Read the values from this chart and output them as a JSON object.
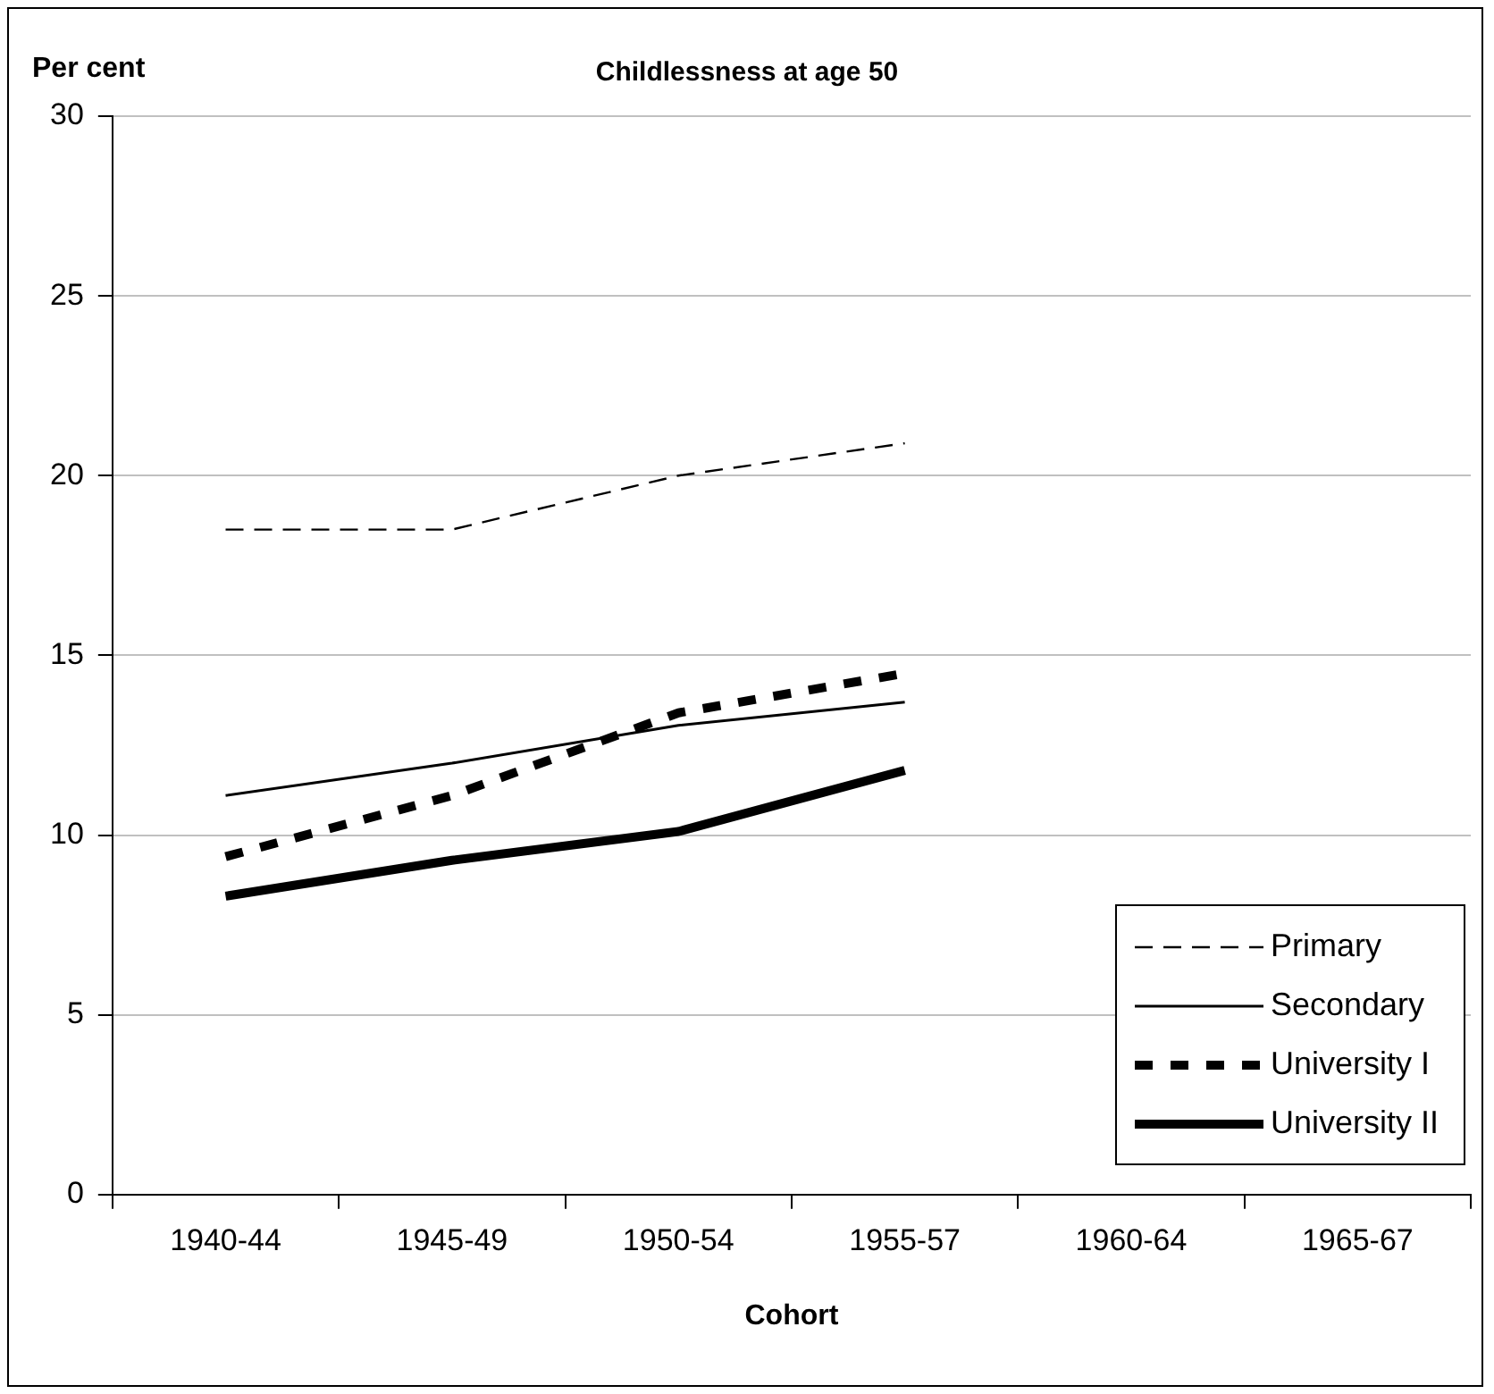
{
  "chart_data": {
    "type": "line",
    "title": "Childlessness at age 50",
    "xlabel": "Cohort",
    "ylabel": "Per cent",
    "categories": [
      "1940-44",
      "1945-49",
      "1950-54",
      "1955-57",
      "1960-64",
      "1965-67"
    ],
    "series": [
      {
        "name": "Primary",
        "color": "#000000",
        "line_style": "dashed",
        "values": [
          18.5,
          18.5,
          20.0,
          20.9,
          null,
          null
        ]
      },
      {
        "name": "Secondary",
        "color": "#000000",
        "line_style": "solid",
        "values": [
          11.1,
          12.0,
          13.05,
          13.7,
          null,
          null
        ]
      },
      {
        "name": "University I",
        "color": "#000000",
        "line_style": "dotted",
        "values": [
          9.4,
          11.1,
          13.4,
          14.5,
          null,
          null
        ]
      },
      {
        "name": "University II",
        "color": "#000000",
        "line_style": "solid",
        "values": [
          8.3,
          9.3,
          10.1,
          11.8,
          null,
          null
        ]
      }
    ],
    "ylim": [
      0,
      30
    ],
    "yticks": [
      0,
      5,
      10,
      15,
      20,
      25,
      30
    ],
    "grid": "y",
    "legend": "bottom right",
    "marker": "none"
  }
}
